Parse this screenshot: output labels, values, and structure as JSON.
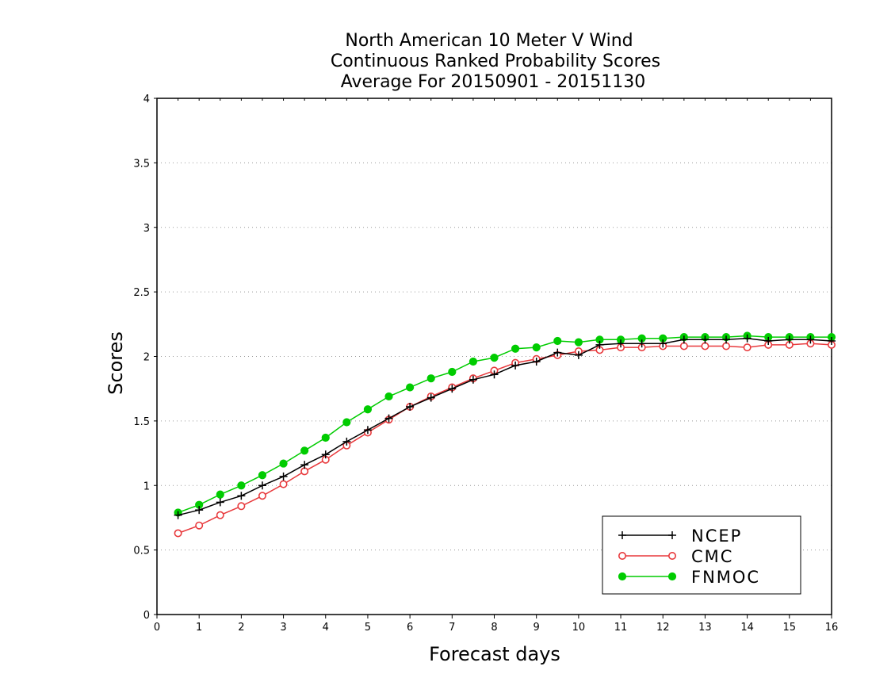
{
  "chart_data": {
    "type": "line",
    "title": [
      "North American 10 Meter V Wind",
      "Continuous Ranked Probability Scores",
      "Average For 20150901 - 20151130"
    ],
    "xlabel": "Forecast days",
    "ylabel": "Scores",
    "xlim": [
      0,
      16
    ],
    "ylim": [
      0,
      4
    ],
    "xticks": [
      "0",
      "1",
      "2",
      "3",
      "4",
      "5",
      "6",
      "7",
      "8",
      "9",
      "10",
      "11",
      "12",
      "13",
      "14",
      "15",
      "16"
    ],
    "yticks": [
      "0",
      "0.5",
      "1",
      "1.5",
      "2",
      "2.5",
      "3",
      "3.5",
      "4"
    ],
    "grid": "horizontal dotted",
    "legend_position": "bottom-right",
    "x": [
      0.5,
      1,
      1.5,
      2,
      2.5,
      3,
      3.5,
      4,
      4.5,
      5,
      5.5,
      6,
      6.5,
      7,
      7.5,
      8,
      8.5,
      9,
      9.5,
      10,
      10.5,
      11,
      11.5,
      12,
      12.5,
      13,
      13.5,
      14,
      14.5,
      15,
      15.5,
      16
    ],
    "series": [
      {
        "name": "NCEP",
        "color": "#000000",
        "marker": "plus",
        "values": [
          0.77,
          0.81,
          0.87,
          0.92,
          1.0,
          1.07,
          1.16,
          1.24,
          1.34,
          1.43,
          1.52,
          1.61,
          1.68,
          1.75,
          1.82,
          1.86,
          1.93,
          1.96,
          2.03,
          2.01,
          2.09,
          2.1,
          2.1,
          2.1,
          2.13,
          2.13,
          2.13,
          2.14,
          2.12,
          2.13,
          2.13,
          2.12
        ]
      },
      {
        "name": "CMC",
        "color": "#e8393c",
        "marker": "open-circle",
        "values": [
          0.63,
          0.69,
          0.77,
          0.84,
          0.92,
          1.01,
          1.11,
          1.2,
          1.31,
          1.41,
          1.51,
          1.61,
          1.69,
          1.76,
          1.83,
          1.89,
          1.95,
          1.98,
          2.01,
          2.04,
          2.05,
          2.07,
          2.07,
          2.08,
          2.08,
          2.08,
          2.08,
          2.07,
          2.09,
          2.09,
          2.1,
          2.09
        ]
      },
      {
        "name": "FNMOC",
        "color": "#00cc00",
        "marker": "filled-circle",
        "values": [
          0.79,
          0.85,
          0.93,
          1.0,
          1.08,
          1.17,
          1.27,
          1.37,
          1.49,
          1.59,
          1.69,
          1.76,
          1.83,
          1.88,
          1.96,
          1.99,
          2.06,
          2.07,
          2.12,
          2.11,
          2.13,
          2.13,
          2.14,
          2.14,
          2.15,
          2.15,
          2.15,
          2.16,
          2.15,
          2.15,
          2.15,
          2.15
        ]
      }
    ]
  }
}
